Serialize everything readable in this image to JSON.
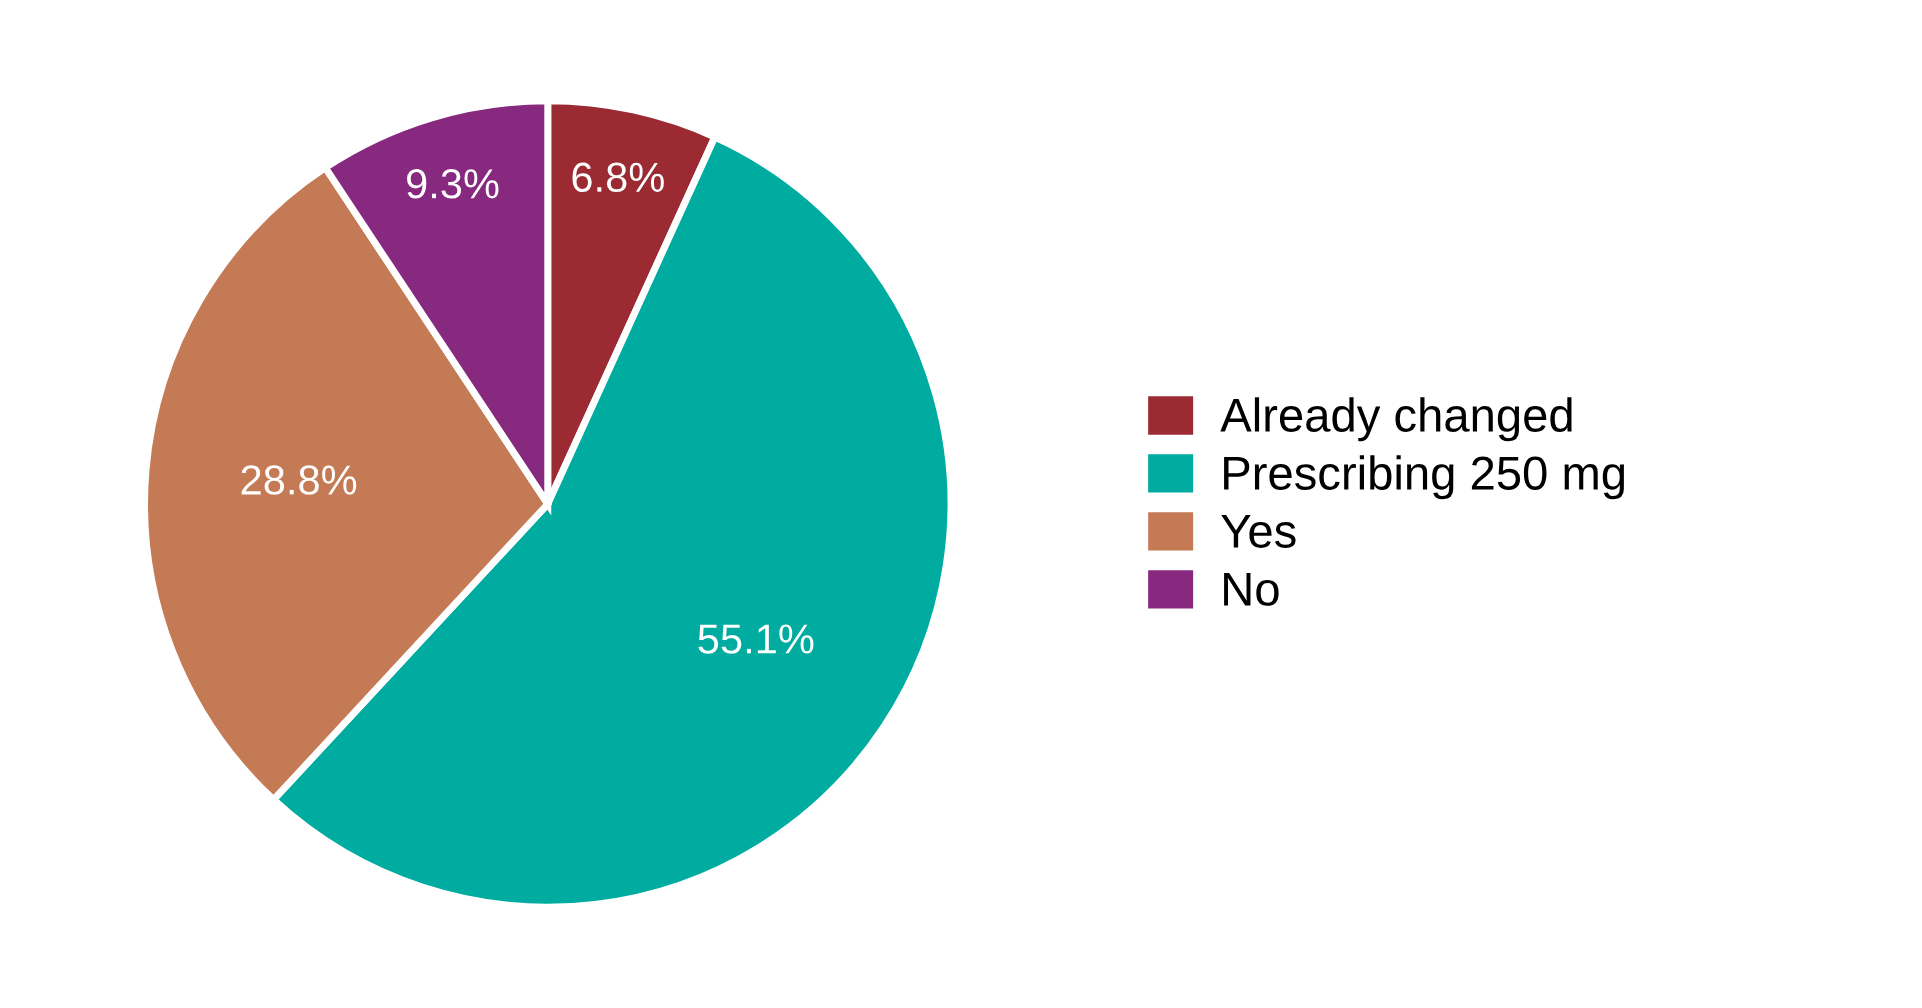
{
  "chart_data": {
    "type": "pie",
    "categories": [
      "Already changed",
      "Prescribing 250 mg",
      "Yes",
      "No"
    ],
    "values": [
      6.8,
      55.1,
      28.8,
      9.3
    ],
    "colors": [
      "#9b2a33",
      "#00aba0",
      "#c47a55",
      "#87297f"
    ],
    "value_labels": [
      "6.8%",
      "55.1%",
      "28.8%",
      "9.3%"
    ],
    "legend": "right"
  }
}
